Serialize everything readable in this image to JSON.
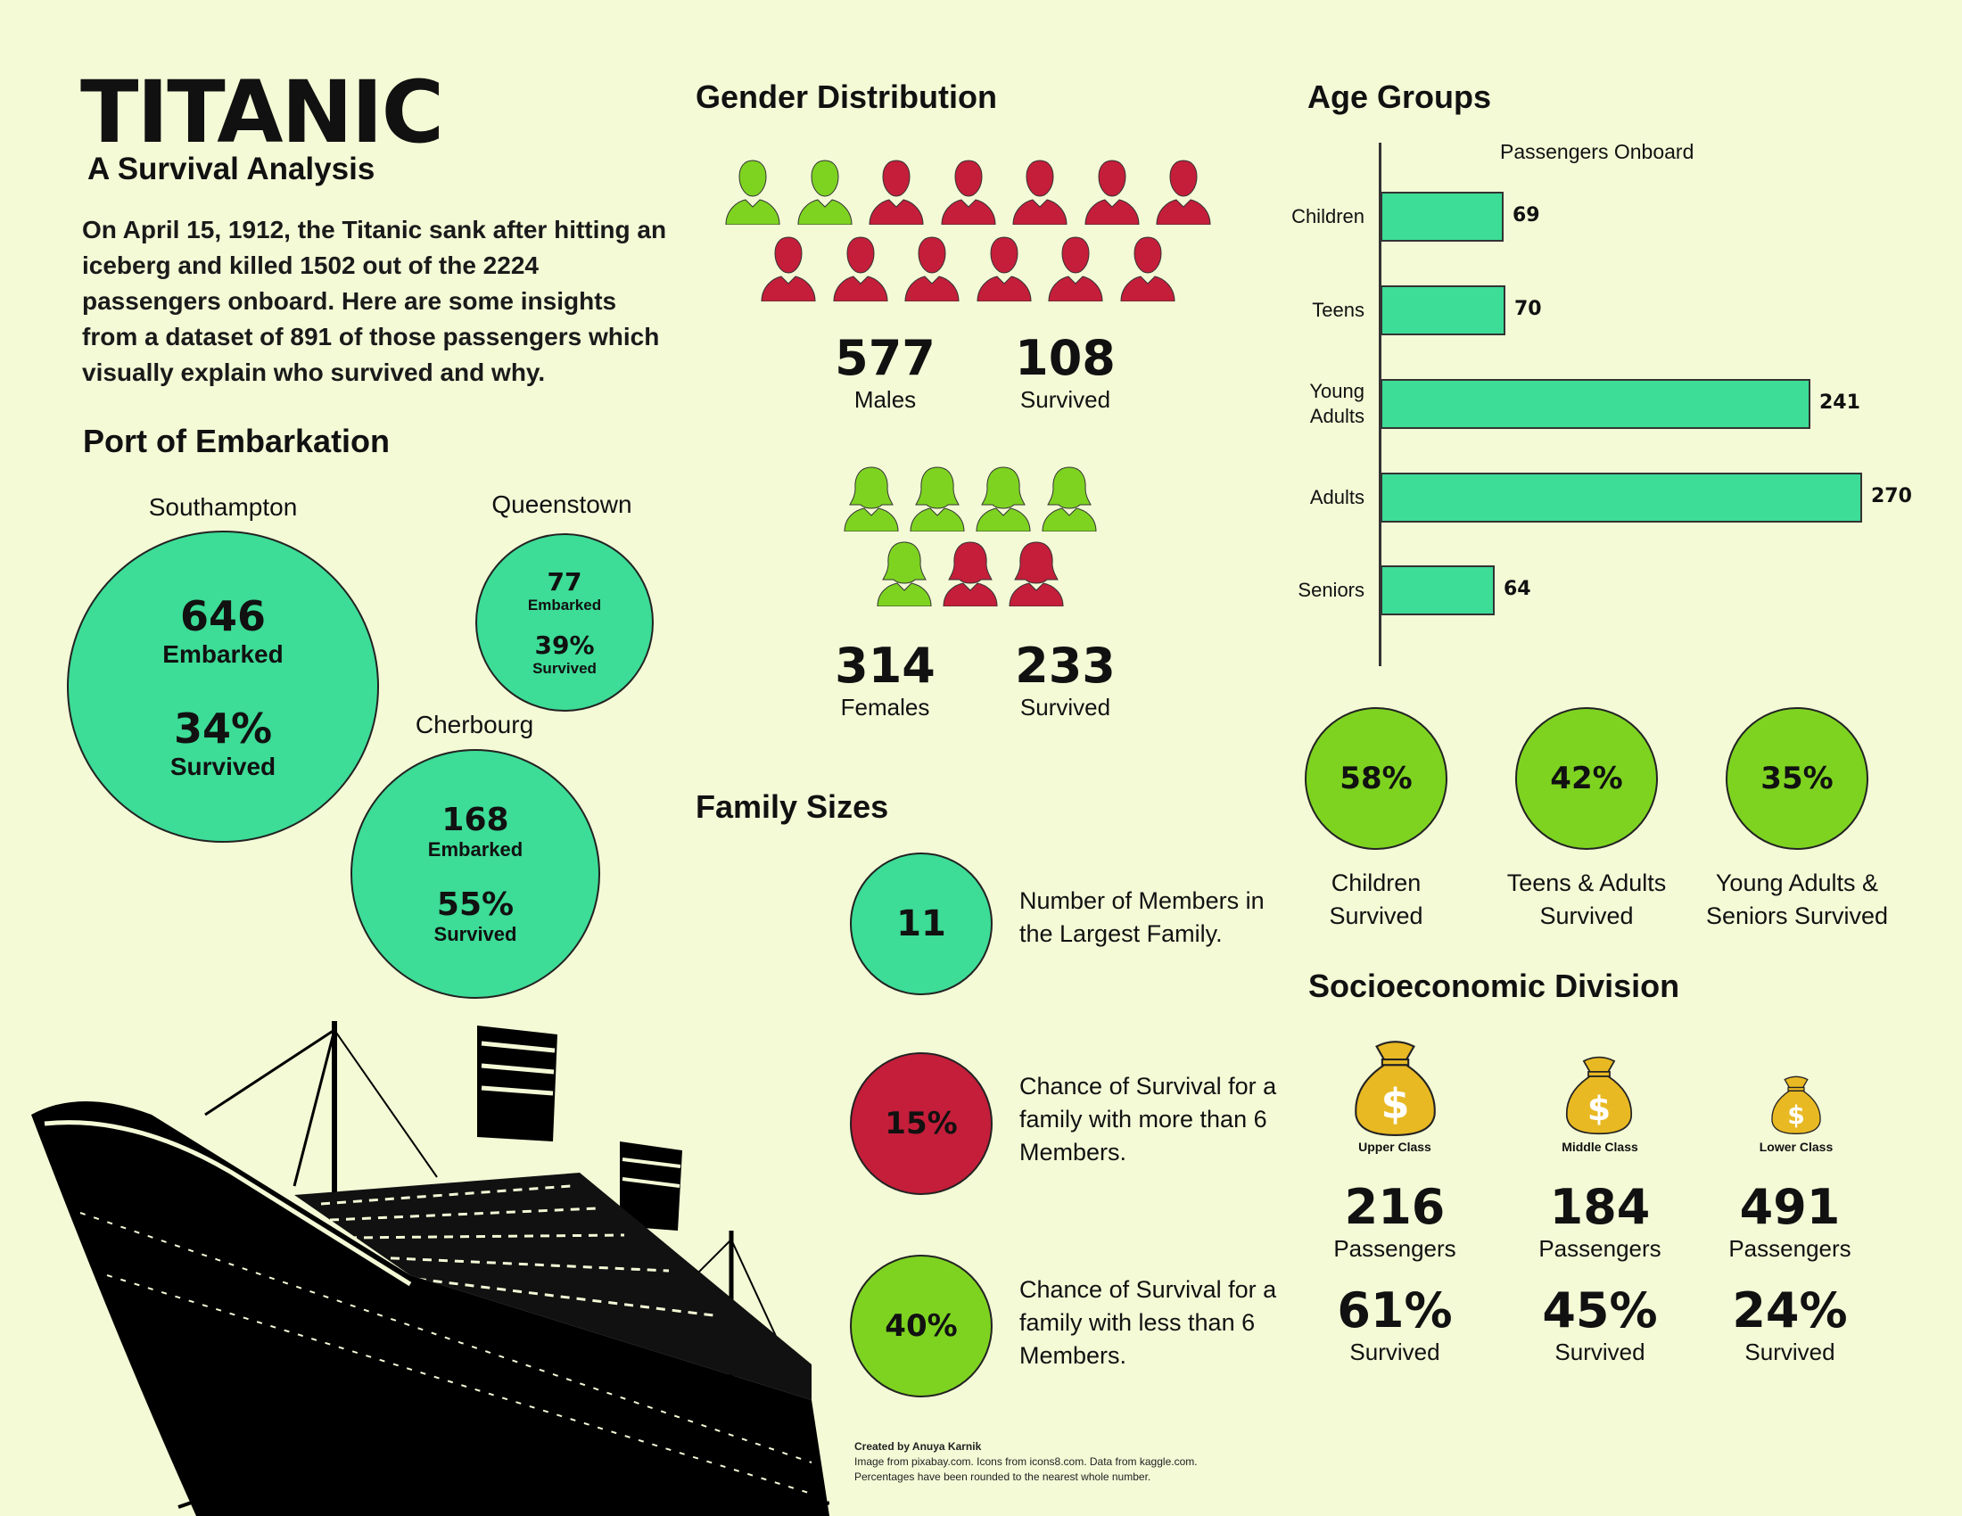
{
  "header": {
    "title": "TITANIC",
    "subtitle": "A Survival Analysis",
    "intro": "On April 15, 1912, the Titanic sank after hitting an iceberg and killed 1502 out of the 2224 passengers onboard. Here are some insights from a dataset of 891 of those passengers which visually explain who survived and why."
  },
  "port": {
    "title": "Port of Embarkation",
    "ports": [
      {
        "name": "Southampton",
        "embarked": "646",
        "embarked_label": "Embarked",
        "survived": "34%",
        "survived_label": "Survived"
      },
      {
        "name": "Queenstown",
        "embarked": "77",
        "embarked_label": "Embarked",
        "survived": "39%",
        "survived_label": "Survived"
      },
      {
        "name": "Cherbourg",
        "embarked": "168",
        "embarked_label": "Embarked",
        "survived": "55%",
        "survived_label": "Survived"
      }
    ]
  },
  "gender": {
    "title": "Gender Distribution",
    "males": {
      "count": "577",
      "label": "Males",
      "survived": "108",
      "survived_label": "Survived",
      "icons_survived": 2,
      "icons_total": 13
    },
    "females": {
      "count": "314",
      "label": "Females",
      "survived": "233",
      "survived_label": "Survived",
      "icons_survived": 5,
      "icons_total": 7
    }
  },
  "family": {
    "title": "Family Sizes",
    "items": [
      {
        "value": "11",
        "text": "Number of Members in the Largest Family."
      },
      {
        "value": "15%",
        "text": "Chance of Survival for a family with more than 6 Members."
      },
      {
        "value": "40%",
        "text": "Chance of Survival for a family with less than 6 Members."
      }
    ]
  },
  "age": {
    "title": "Age Groups",
    "survival": [
      {
        "value": "58%",
        "label": "Children Survived"
      },
      {
        "value": "42%",
        "label": "Teens & Adults Survived"
      },
      {
        "value": "35%",
        "label": "Young Adults & Seniors Survived"
      }
    ]
  },
  "socio": {
    "title": "Socioeconomic Division",
    "classes": [
      {
        "name": "Upper Class",
        "passengers": "216",
        "passengers_label": "Passengers",
        "survived": "61%",
        "survived_label": "Survived"
      },
      {
        "name": "Middle Class",
        "passengers": "184",
        "passengers_label": "Passengers",
        "survived": "45%",
        "survived_label": "Survived"
      },
      {
        "name": "Lower Class",
        "passengers": "491",
        "passengers_label": "Passengers",
        "survived": "24%",
        "survived_label": "Survived"
      }
    ]
  },
  "credits": {
    "line1": "Created by Anuya Karnik",
    "line2": "Image from pixabay.com. Icons from icons8.com. Data from kaggle.com.",
    "line3": "Percentages have been rounded to the nearest whole number."
  },
  "colors": {
    "teal": "#3ddc97",
    "green": "#7ed321",
    "red": "#c41e3a",
    "gold": "#e8b923",
    "background": "#f4f9d6"
  },
  "chart_data": {
    "type": "bar",
    "title": "Passengers Onboard",
    "orientation": "horizontal",
    "categories": [
      "Children",
      "Teens",
      "Young Adults",
      "Adults",
      "Seniors"
    ],
    "values": [
      69,
      70,
      241,
      270,
      64
    ],
    "xlim": [
      0,
      270
    ],
    "grid": false
  }
}
